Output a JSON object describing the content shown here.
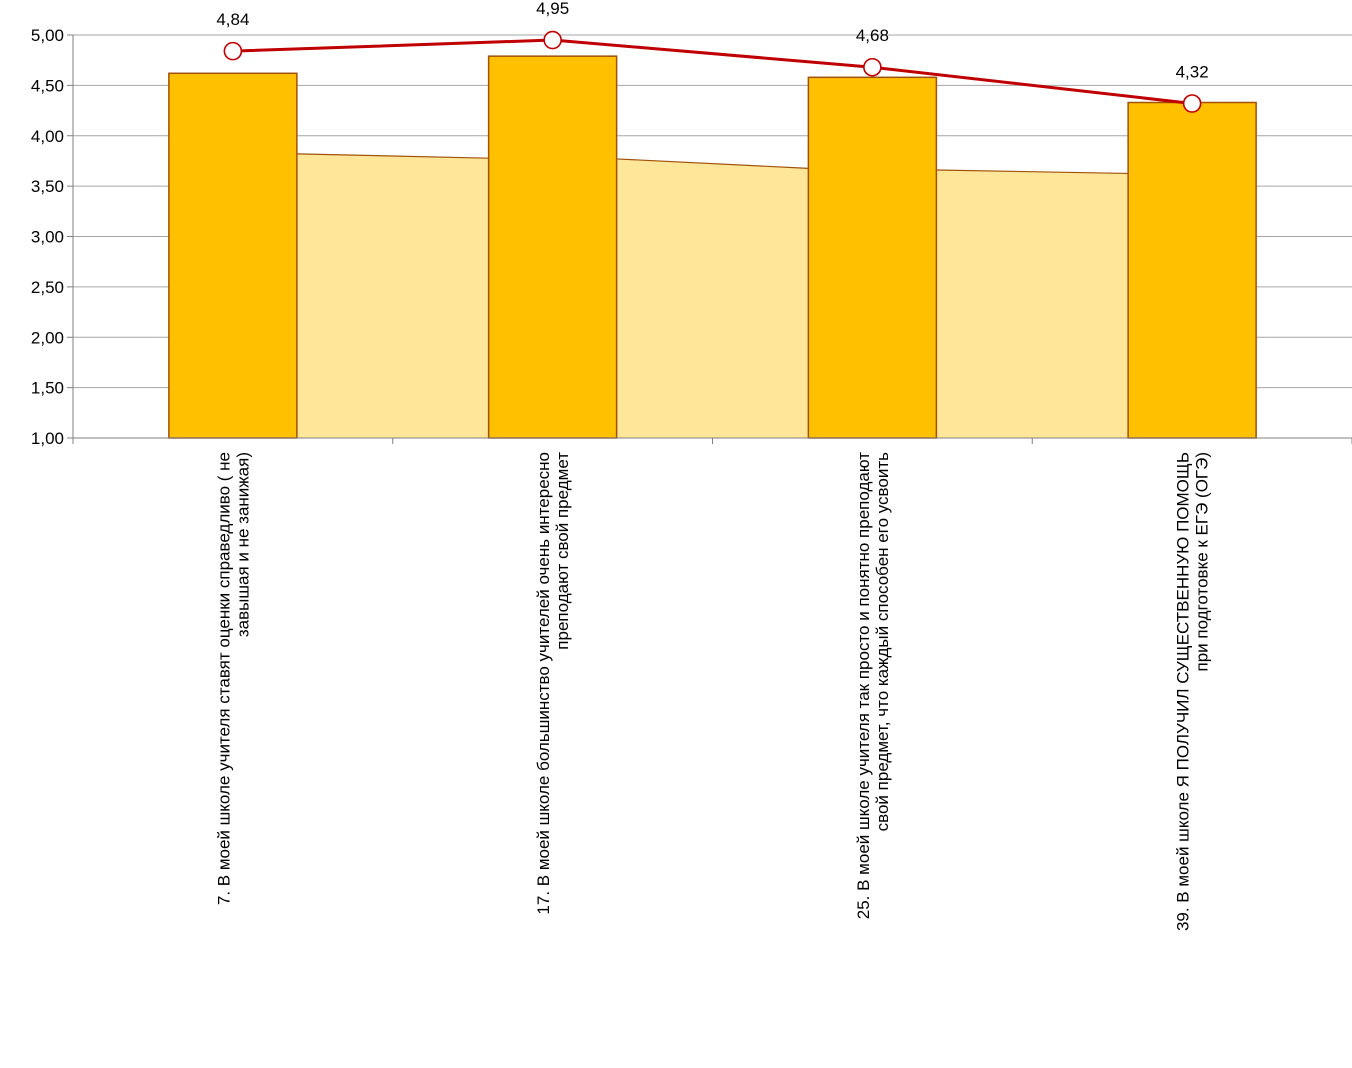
{
  "chart_data": {
    "type": "bar",
    "title": "",
    "xlabel": "",
    "ylabel": "",
    "ylim": [
      1.0,
      5.0
    ],
    "yticks": [
      "1,00",
      "1,50",
      "2,00",
      "2,50",
      "3,00",
      "3,50",
      "4,00",
      "4,50",
      "5,00"
    ],
    "categories": [
      [
        "7. В моей школе учителя  ставят оценки справедливо ( не",
        "завышая и не занижая)"
      ],
      [
        "17. В моей школе большинство учителей очень интересно",
        "преподают свой предмет"
      ],
      [
        "25. В моей школе учителя так просто и понятно преподают",
        "свой предмет, что каждый способен его усвоить"
      ],
      [
        "39. В моей школе Я ПОЛУЧИЛ СУЩЕСТВЕННУЮ  ПОМОЩЬ",
        "при подготовке к ЕГЭ (ОГЭ)"
      ]
    ],
    "series": [
      {
        "type": "bar",
        "values": [
          4.62,
          4.79,
          4.58,
          4.33
        ]
      },
      {
        "type": "area",
        "values": [
          3.82,
          3.77,
          3.66,
          3.62
        ]
      },
      {
        "type": "line",
        "values": [
          4.84,
          4.95,
          4.68,
          4.32
        ],
        "labels": [
          "4,84",
          "4,95",
          "4,68",
          "4,32"
        ]
      }
    ],
    "colors": {
      "bar_fill": "#FFC000",
      "bar_stroke": "#A0520A",
      "area_fill": "#FFE699",
      "area_stroke": "#A0520A",
      "line": "#C00000",
      "marker_fill": "#FFFFFF",
      "grid": "#A6A6A6",
      "axis": "#808080"
    },
    "grid": true,
    "legend": "none"
  }
}
